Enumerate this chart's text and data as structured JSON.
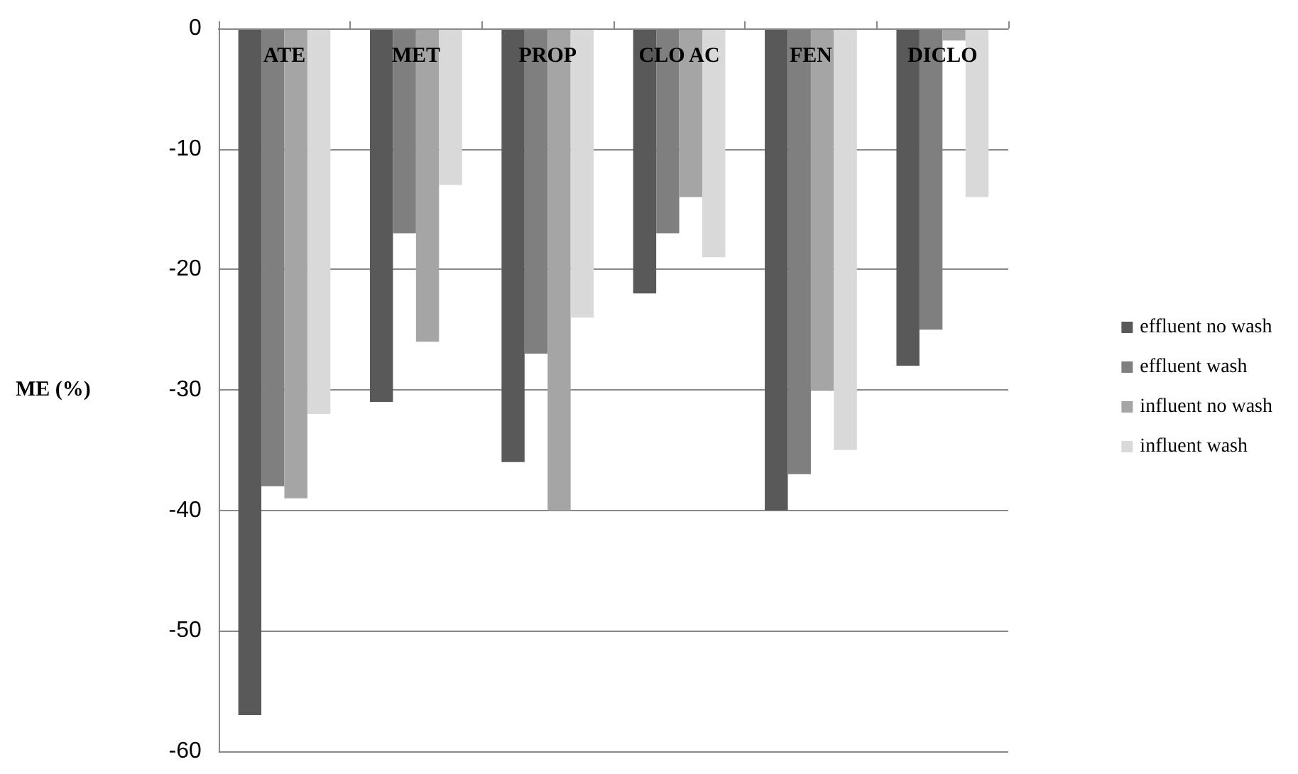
{
  "chart_data": {
    "type": "bar",
    "ylabel": "ME (%)",
    "categories": [
      "ATE",
      "MET",
      "PROP",
      "CLO AC",
      "FEN",
      "DICLO"
    ],
    "series": [
      {
        "name": "effluent no wash",
        "color": "#595959",
        "values": [
          -57,
          -31,
          -36,
          -22,
          -40,
          -28
        ]
      },
      {
        "name": "effluent wash",
        "color": "#7f7f7f",
        "values": [
          -38,
          -17,
          -27,
          -17,
          -37,
          -25
        ]
      },
      {
        "name": "influent no wash",
        "color": "#a5a5a5",
        "values": [
          -39,
          -26,
          -40,
          -14,
          -30,
          -1
        ]
      },
      {
        "name": "influent wash",
        "color": "#d9d9d9",
        "values": [
          -32,
          -13,
          -24,
          -19,
          -35,
          -14
        ]
      }
    ],
    "ylim": [
      -60,
      0
    ],
    "yticks": [
      -60,
      -50,
      -40,
      -30,
      -20,
      -10,
      0
    ],
    "grid": "y",
    "legend": "right"
  }
}
